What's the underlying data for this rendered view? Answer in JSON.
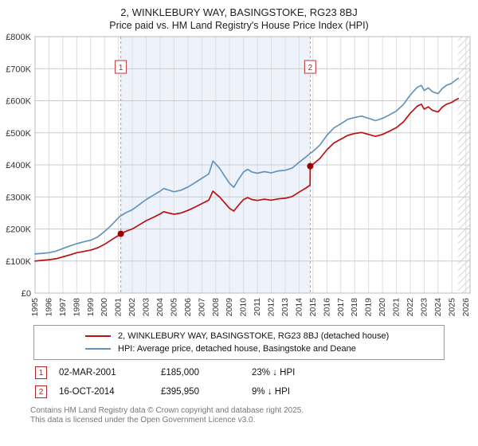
{
  "title": "2, WINKLEBURY WAY, BASINGSTOKE, RG23 8BJ",
  "subtitle": "Price paid vs. HM Land Registry's House Price Index (HPI)",
  "chart_data": {
    "type": "line",
    "xlim": [
      1995,
      2026.3
    ],
    "ylim": [
      0,
      800
    ],
    "y_tick_step": 100,
    "y_tick_labels": [
      "£0",
      "£100K",
      "£200K",
      "£300K",
      "£400K",
      "£500K",
      "£600K",
      "£700K",
      "£800K"
    ],
    "x_ticks": [
      1995,
      1996,
      1997,
      1998,
      1999,
      2000,
      2001,
      2002,
      2003,
      2004,
      2005,
      2006,
      2007,
      2008,
      2009,
      2010,
      2011,
      2012,
      2013,
      2014,
      2015,
      2016,
      2017,
      2018,
      2019,
      2020,
      2021,
      2022,
      2023,
      2024,
      2025,
      2026
    ],
    "grid": true,
    "legend_position": "bottom",
    "shaded_region": [
      2001.17,
      2014.79
    ],
    "shaded_color": "#edf2fb",
    "hatch_region": [
      2025.45,
      2026.3
    ],
    "sale_line_color": "#e08888",
    "series": [
      {
        "name": "2, WINKLEBURY WAY, BASINGSTOKE, RG23 8BJ (detached house)",
        "color": "#bb1111",
        "points": [
          [
            1995,
            100
          ],
          [
            1995.5,
            102
          ],
          [
            1996,
            104
          ],
          [
            1996.5,
            107
          ],
          [
            1997,
            113
          ],
          [
            1997.5,
            119
          ],
          [
            1998,
            126
          ],
          [
            1998.5,
            130
          ],
          [
            1999,
            134
          ],
          [
            1999.5,
            141
          ],
          [
            2000,
            152
          ],
          [
            2000.5,
            166
          ],
          [
            2001,
            180
          ],
          [
            2001.17,
            185
          ],
          [
            2001.5,
            192
          ],
          [
            2002,
            200
          ],
          [
            2002.5,
            213
          ],
          [
            2003,
            226
          ],
          [
            2003.5,
            236
          ],
          [
            2004,
            247
          ],
          [
            2004.25,
            254
          ],
          [
            2004.5,
            251
          ],
          [
            2005,
            246
          ],
          [
            2005.5,
            250
          ],
          [
            2006,
            258
          ],
          [
            2006.5,
            268
          ],
          [
            2007,
            279
          ],
          [
            2007.5,
            290
          ],
          [
            2007.8,
            318
          ],
          [
            2008,
            310
          ],
          [
            2008.3,
            299
          ],
          [
            2008.6,
            284
          ],
          [
            2009,
            264
          ],
          [
            2009.3,
            256
          ],
          [
            2009.6,
            272
          ],
          [
            2010,
            292
          ],
          [
            2010.3,
            298
          ],
          [
            2010.6,
            292
          ],
          [
            2011,
            289
          ],
          [
            2011.5,
            293
          ],
          [
            2012,
            290
          ],
          [
            2012.5,
            294
          ],
          [
            2013,
            296
          ],
          [
            2013.5,
            301
          ],
          [
            2014,
            315
          ],
          [
            2014.5,
            328
          ],
          [
            2014.79,
            337
          ],
          [
            2014.8,
            396
          ],
          [
            2015,
            402
          ],
          [
            2015.5,
            420
          ],
          [
            2016,
            447
          ],
          [
            2016.5,
            468
          ],
          [
            2017,
            480
          ],
          [
            2017.5,
            492
          ],
          [
            2018,
            498
          ],
          [
            2018.5,
            501
          ],
          [
            2019,
            495
          ],
          [
            2019.5,
            489
          ],
          [
            2020,
            495
          ],
          [
            2020.5,
            505
          ],
          [
            2021,
            516
          ],
          [
            2021.5,
            534
          ],
          [
            2022,
            561
          ],
          [
            2022.5,
            583
          ],
          [
            2022.8,
            589
          ],
          [
            2023,
            574
          ],
          [
            2023.3,
            581
          ],
          [
            2023.6,
            570
          ],
          [
            2024,
            565
          ],
          [
            2024.3,
            580
          ],
          [
            2024.6,
            589
          ],
          [
            2025,
            595
          ],
          [
            2025.2,
            601
          ],
          [
            2025.45,
            607
          ]
        ]
      },
      {
        "name": "HPI: Average price, detached house, Basingstoke and Deane",
        "color": "#6593bc",
        "points": [
          [
            1995,
            122
          ],
          [
            1995.5,
            124
          ],
          [
            1996,
            126
          ],
          [
            1996.5,
            131
          ],
          [
            1997,
            139
          ],
          [
            1997.5,
            147
          ],
          [
            1998,
            154
          ],
          [
            1998.5,
            160
          ],
          [
            1999,
            165
          ],
          [
            1999.5,
            175
          ],
          [
            2000,
            192
          ],
          [
            2000.5,
            212
          ],
          [
            2001,
            235
          ],
          [
            2001.17,
            241
          ],
          [
            2001.5,
            250
          ],
          [
            2002,
            260
          ],
          [
            2002.5,
            276
          ],
          [
            2003,
            292
          ],
          [
            2003.5,
            305
          ],
          [
            2004,
            318
          ],
          [
            2004.25,
            326
          ],
          [
            2004.5,
            323
          ],
          [
            2005,
            316
          ],
          [
            2005.5,
            321
          ],
          [
            2006,
            331
          ],
          [
            2006.5,
            344
          ],
          [
            2007,
            358
          ],
          [
            2007.5,
            372
          ],
          [
            2007.8,
            412
          ],
          [
            2008,
            403
          ],
          [
            2008.3,
            388
          ],
          [
            2008.6,
            368
          ],
          [
            2009,
            342
          ],
          [
            2009.3,
            330
          ],
          [
            2009.6,
            352
          ],
          [
            2010,
            378
          ],
          [
            2010.3,
            386
          ],
          [
            2010.6,
            378
          ],
          [
            2011,
            374
          ],
          [
            2011.5,
            379
          ],
          [
            2012,
            375
          ],
          [
            2012.5,
            381
          ],
          [
            2013,
            383
          ],
          [
            2013.5,
            390
          ],
          [
            2014,
            408
          ],
          [
            2014.5,
            425
          ],
          [
            2014.8,
            436
          ],
          [
            2015,
            442
          ],
          [
            2015.5,
            462
          ],
          [
            2016,
            492
          ],
          [
            2016.5,
            515
          ],
          [
            2017,
            528
          ],
          [
            2017.5,
            542
          ],
          [
            2018,
            548
          ],
          [
            2018.5,
            552
          ],
          [
            2019,
            545
          ],
          [
            2019.5,
            538
          ],
          [
            2020,
            545
          ],
          [
            2020.5,
            556
          ],
          [
            2021,
            568
          ],
          [
            2021.5,
            588
          ],
          [
            2022,
            618
          ],
          [
            2022.5,
            642
          ],
          [
            2022.8,
            648
          ],
          [
            2023,
            632
          ],
          [
            2023.3,
            640
          ],
          [
            2023.6,
            628
          ],
          [
            2024,
            622
          ],
          [
            2024.3,
            638
          ],
          [
            2024.6,
            648
          ],
          [
            2025,
            655
          ],
          [
            2025.2,
            662
          ],
          [
            2025.45,
            670
          ]
        ]
      }
    ],
    "markers": [
      {
        "label": "1",
        "x": 2001.17,
        "y": 185
      },
      {
        "label": "2",
        "x": 2014.8,
        "y": 396
      }
    ]
  },
  "transactions": [
    {
      "num": "1",
      "date": "02-MAR-2001",
      "price": "£185,000",
      "hpi_diff": "23% ↓ HPI"
    },
    {
      "num": "2",
      "date": "16-OCT-2014",
      "price": "£395,950",
      "hpi_diff": "9% ↓ HPI"
    }
  ],
  "footer": {
    "line1": "Contains HM Land Registry data © Crown copyright and database right 2025.",
    "line2": "This data is licensed under the Open Government Licence v3.0."
  }
}
